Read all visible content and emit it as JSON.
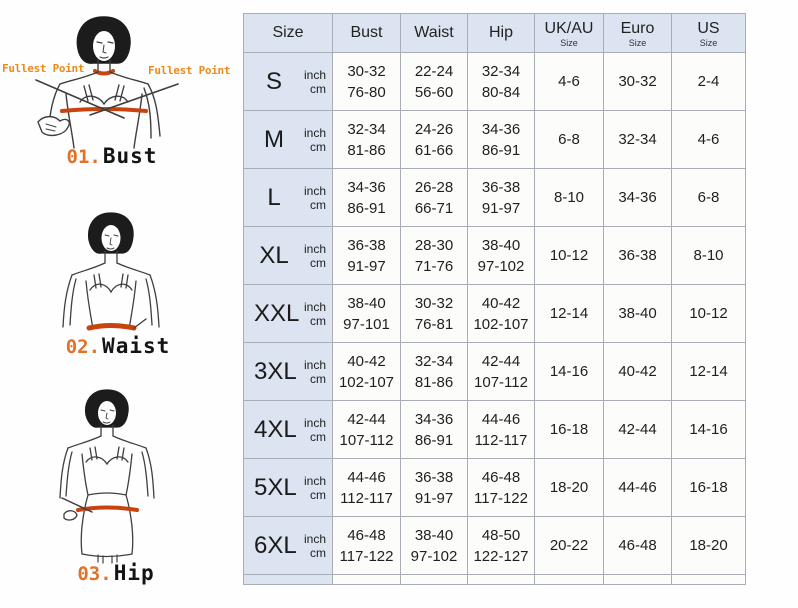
{
  "colors": {
    "header_bg": "#dce4f1",
    "cell_bg": "#fcfcfb",
    "border_gray": "#a9adb5",
    "callout_orange": "#ec8a1a",
    "band_orange": "#c8430f",
    "text": "#1f1f1f"
  },
  "diagrams": [
    {
      "number": "01.",
      "name": "Bust",
      "callout_left": "Fullest Point",
      "callout_right": "Fullest Point"
    },
    {
      "number": "02.",
      "name": "Waist"
    },
    {
      "number": "03.",
      "name": "Hip"
    }
  ],
  "table_headers": {
    "size": "Size",
    "bust": "Bust",
    "waist": "Waist",
    "hip": "Hip",
    "ukau": "UK/AU",
    "euro": "Euro",
    "us": "US",
    "sub": "Size"
  },
  "chart_data": {
    "type": "table",
    "columns": [
      "Size",
      "Bust",
      "Waist",
      "Hip",
      "UK/AU Size",
      "Euro Size",
      "US Size"
    ],
    "units_labels": [
      "inch",
      "cm"
    ],
    "rows": [
      {
        "size": "S",
        "bust": [
          "30-32",
          "76-80"
        ],
        "waist": [
          "22-24",
          "56-60"
        ],
        "hip": [
          "32-34",
          "80-84"
        ],
        "ukau": "4-6",
        "euro": "30-32",
        "us": "2-4"
      },
      {
        "size": "M",
        "bust": [
          "32-34",
          "81-86"
        ],
        "waist": [
          "24-26",
          "61-66"
        ],
        "hip": [
          "34-36",
          "86-91"
        ],
        "ukau": "6-8",
        "euro": "32-34",
        "us": "4-6"
      },
      {
        "size": "L",
        "bust": [
          "34-36",
          "86-91"
        ],
        "waist": [
          "26-28",
          "66-71"
        ],
        "hip": [
          "36-38",
          "91-97"
        ],
        "ukau": "8-10",
        "euro": "34-36",
        "us": "6-8"
      },
      {
        "size": "XL",
        "bust": [
          "36-38",
          "91-97"
        ],
        "waist": [
          "28-30",
          "71-76"
        ],
        "hip": [
          "38-40",
          "97-102"
        ],
        "ukau": "10-12",
        "euro": "36-38",
        "us": "8-10"
      },
      {
        "size": "XXL",
        "bust": [
          "38-40",
          "97-101"
        ],
        "waist": [
          "30-32",
          "76-81"
        ],
        "hip": [
          "40-42",
          "102-107"
        ],
        "ukau": "12-14",
        "euro": "38-40",
        "us": "10-12"
      },
      {
        "size": "3XL",
        "bust": [
          "40-42",
          "102-107"
        ],
        "waist": [
          "32-34",
          "81-86"
        ],
        "hip": [
          "42-44",
          "107-112"
        ],
        "ukau": "14-16",
        "euro": "40-42",
        "us": "12-14"
      },
      {
        "size": "4XL",
        "bust": [
          "42-44",
          "107-112"
        ],
        "waist": [
          "34-36",
          "86-91"
        ],
        "hip": [
          "44-46",
          "112-117"
        ],
        "ukau": "16-18",
        "euro": "42-44",
        "us": "14-16"
      },
      {
        "size": "5XL",
        "bust": [
          "44-46",
          "112-117"
        ],
        "waist": [
          "36-38",
          "91-97"
        ],
        "hip": [
          "46-48",
          "117-122"
        ],
        "ukau": "18-20",
        "euro": "44-46",
        "us": "16-18"
      },
      {
        "size": "6XL",
        "bust": [
          "46-48",
          "117-122"
        ],
        "waist": [
          "38-40",
          "97-102"
        ],
        "hip": [
          "48-50",
          "122-127"
        ],
        "ukau": "20-22",
        "euro": "46-48",
        "us": "18-20"
      }
    ]
  }
}
